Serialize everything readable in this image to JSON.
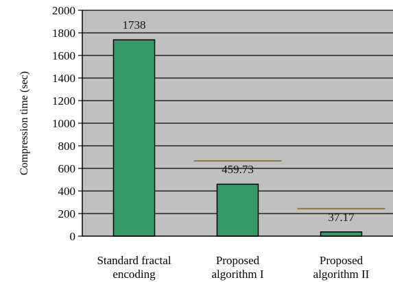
{
  "chart_data": {
    "type": "bar",
    "categories": [
      [
        "Standard fractal",
        "encoding"
      ],
      [
        "Proposed",
        "algorithm I"
      ],
      [
        "Proposed",
        "algorithm II"
      ]
    ],
    "values": [
      1738,
      459.73,
      37.17
    ],
    "data_labels": [
      "1738",
      "459.73",
      "37.17"
    ],
    "ylabel": "Compression time (sec)",
    "xlabel": "",
    "ylim": [
      0,
      2000
    ],
    "yticks": [
      0,
      200,
      400,
      600,
      800,
      1000,
      1200,
      1400,
      1600,
      1800,
      2000
    ],
    "grid": true,
    "colors": {
      "plot_background": "#c0c0c0",
      "gridline": "#000000",
      "bar_fill": "#339966",
      "bar_edge": "#000000",
      "label_underline": "#8b7a3a"
    }
  }
}
